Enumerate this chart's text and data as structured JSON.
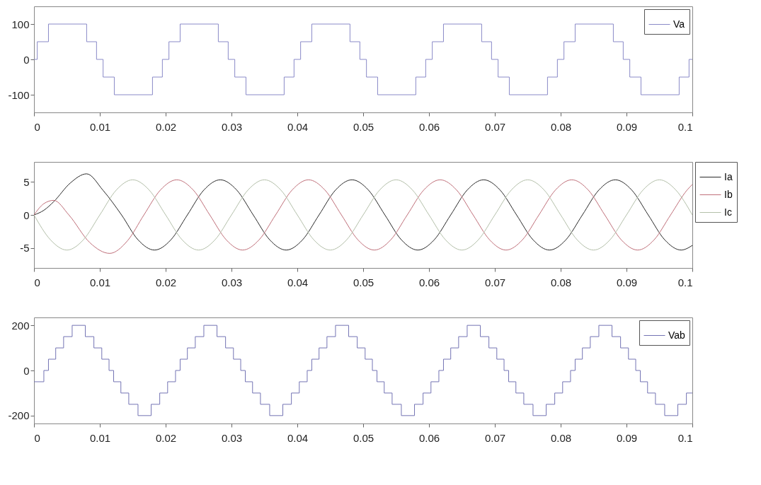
{
  "chart_data": [
    {
      "type": "step",
      "legend": "top right",
      "grid": false,
      "xlim": [
        0,
        0.1
      ],
      "xticks": [
        0,
        0.01,
        0.02,
        0.03,
        0.04,
        0.05,
        0.06,
        0.07,
        0.08,
        0.09,
        0.1
      ],
      "ylim": [
        -150,
        150
      ],
      "yticks": [
        -100,
        0,
        100
      ],
      "series": [
        {
          "name": "Va",
          "color": "#8a8ac8",
          "x": [
            0,
            0.0005,
            0.0022,
            0.008,
            0.0095,
            0.0105,
            0.0122,
            0.018,
            0.0195,
            0.0205,
            0.0222,
            0.028,
            0.0295,
            0.0305,
            0.0322,
            0.038,
            0.0395,
            0.0405,
            0.0422,
            0.048,
            0.0495,
            0.0505,
            0.0522,
            0.058,
            0.0595,
            0.0605,
            0.0622,
            0.068,
            0.0695,
            0.0705,
            0.0722,
            0.078,
            0.0795,
            0.0805,
            0.0822,
            0.088,
            0.0895,
            0.0905,
            0.0922,
            0.098,
            0.0995,
            0.1
          ],
          "values": [
            0,
            50,
            100,
            50,
            0,
            -50,
            -100,
            -50,
            0,
            50,
            100,
            50,
            0,
            -50,
            -100,
            -50,
            0,
            50,
            100,
            50,
            0,
            -50,
            -100,
            -50,
            0,
            50,
            100,
            50,
            0,
            -50,
            -100,
            -50,
            0,
            50,
            100,
            50,
            0,
            -50,
            -100,
            -50,
            0,
            0
          ]
        }
      ]
    },
    {
      "type": "line",
      "legend": "right",
      "grid": false,
      "xlim": [
        0,
        0.1
      ],
      "xticks": [
        0,
        0.01,
        0.02,
        0.03,
        0.04,
        0.05,
        0.06,
        0.07,
        0.08,
        0.09,
        0.1
      ],
      "ylim": [
        -8,
        8
      ],
      "yticks": [
        -5,
        0,
        5
      ],
      "series": [
        {
          "name": "Ia",
          "color": "#2a2a2a",
          "x": [
            0,
            0.0015,
            0.003,
            0.0055,
            0.008,
            0.0105,
            0.0133,
            0.0158,
            0.0183,
            0.0208,
            0.0233,
            0.0258,
            0.0283,
            0.0308,
            0.0333,
            0.0358,
            0.0383,
            0.0408,
            0.0433,
            0.0458,
            0.0483,
            0.0508,
            0.0533,
            0.0558,
            0.0583,
            0.0608,
            0.0633,
            0.0658,
            0.0683,
            0.0708,
            0.0733,
            0.0758,
            0.0783,
            0.0808,
            0.0833,
            0.0858,
            0.0883,
            0.0908,
            0.0933,
            0.0958,
            0.0983,
            0.1
          ],
          "values": [
            0,
            0.7,
            2,
            4.8,
            6.2,
            3.7,
            0,
            -3.75,
            -5.3,
            -3.75,
            0,
            3.75,
            5.3,
            3.75,
            0,
            -3.75,
            -5.3,
            -3.75,
            0,
            3.75,
            5.3,
            3.75,
            0,
            -3.75,
            -5.3,
            -3.75,
            0,
            3.75,
            5.3,
            3.75,
            0,
            -3.75,
            -5.3,
            -3.75,
            0,
            3.75,
            5.3,
            3.75,
            0,
            -3.75,
            -5.3,
            -4.6
          ]
        },
        {
          "name": "Ib",
          "color": "#c0707a",
          "x": [
            0,
            0.0015,
            0.003,
            0.0053,
            0.0085,
            0.0115,
            0.0142,
            0.0167,
            0.0192,
            0.0217,
            0.0242,
            0.0267,
            0.0292,
            0.0317,
            0.0342,
            0.0367,
            0.0392,
            0.0417,
            0.0442,
            0.0467,
            0.0492,
            0.0517,
            0.0542,
            0.0567,
            0.0592,
            0.0617,
            0.0642,
            0.0667,
            0.0692,
            0.0717,
            0.0742,
            0.0767,
            0.0792,
            0.0817,
            0.0842,
            0.0867,
            0.0892,
            0.0917,
            0.0942,
            0.0967,
            0.0992,
            0.1
          ],
          "values": [
            0,
            1.7,
            2.2,
            0,
            -4.2,
            -5.8,
            -3.9,
            0,
            3.75,
            5.3,
            3.75,
            0,
            -3.75,
            -5.3,
            -3.75,
            0,
            3.75,
            5.3,
            3.75,
            0,
            -3.75,
            -5.3,
            -3.75,
            0,
            3.75,
            5.3,
            3.75,
            0,
            -3.75,
            -5.3,
            -3.75,
            0,
            3.75,
            5.3,
            3.75,
            0,
            -3.75,
            -5.3,
            -3.75,
            0,
            3.75,
            4.6
          ]
        },
        {
          "name": "Ic",
          "color": "#b4c0aa",
          "x": [
            0,
            0.0025,
            0.005,
            0.0075,
            0.01,
            0.0125,
            0.015,
            0.0175,
            0.02,
            0.0225,
            0.025,
            0.0275,
            0.03,
            0.0325,
            0.035,
            0.0375,
            0.04,
            0.0425,
            0.045,
            0.0475,
            0.05,
            0.0525,
            0.055,
            0.0575,
            0.06,
            0.0625,
            0.065,
            0.0675,
            0.07,
            0.0725,
            0.075,
            0.0775,
            0.08,
            0.0825,
            0.085,
            0.0875,
            0.09,
            0.0925,
            0.095,
            0.0975,
            0.1
          ],
          "values": [
            0,
            -3.75,
            -5.3,
            -3.75,
            0,
            3.75,
            5.3,
            3.75,
            0,
            -3.75,
            -5.3,
            -3.75,
            0,
            3.75,
            5.3,
            3.75,
            0,
            -3.75,
            -5.3,
            -3.75,
            0,
            3.75,
            5.3,
            3.75,
            0,
            -3.75,
            -5.3,
            -3.75,
            0,
            3.75,
            5.3,
            3.75,
            0,
            -3.75,
            -5.3,
            -3.75,
            0,
            3.75,
            5.3,
            3.75,
            0
          ]
        }
      ]
    },
    {
      "type": "step",
      "legend": "top right",
      "grid": false,
      "xlim": [
        0,
        0.1
      ],
      "xticks": [
        0,
        0.01,
        0.02,
        0.03,
        0.04,
        0.05,
        0.06,
        0.07,
        0.08,
        0.09,
        0.1
      ],
      "ylim": [
        -235,
        235
      ],
      "yticks": [
        -200,
        0,
        200
      ],
      "series": [
        {
          "name": "Vab",
          "color": "#7474b4",
          "x": [
            0,
            0.0015,
            0.0022,
            0.0033,
            0.0045,
            0.0058,
            0.0078,
            0.0091,
            0.0103,
            0.0114,
            0.0121,
            0.0132,
            0.0144,
            0.0158,
            0.0178,
            0.0191,
            0.0203,
            0.0215,
            0.0222,
            0.0233,
            0.0245,
            0.0258,
            0.0278,
            0.0291,
            0.0303,
            0.0314,
            0.0321,
            0.0332,
            0.0344,
            0.0358,
            0.0378,
            0.0391,
            0.0403,
            0.0415,
            0.0422,
            0.0433,
            0.0445,
            0.0458,
            0.0478,
            0.0491,
            0.0503,
            0.0514,
            0.0521,
            0.0532,
            0.0544,
            0.0558,
            0.0578,
            0.0591,
            0.0603,
            0.0615,
            0.0622,
            0.0633,
            0.0645,
            0.0658,
            0.0678,
            0.0691,
            0.0703,
            0.0714,
            0.0721,
            0.0732,
            0.0744,
            0.0758,
            0.0778,
            0.0791,
            0.0803,
            0.0815,
            0.0822,
            0.0833,
            0.0845,
            0.0858,
            0.0878,
            0.0891,
            0.0903,
            0.0914,
            0.0921,
            0.0932,
            0.0944,
            0.0958,
            0.0978,
            0.0991,
            0.1
          ],
          "values": [
            -50,
            0,
            50,
            100,
            150,
            200,
            150,
            100,
            50,
            0,
            -50,
            -100,
            -150,
            -200,
            -150,
            -100,
            -50,
            0,
            50,
            100,
            150,
            200,
            150,
            100,
            50,
            0,
            -50,
            -100,
            -150,
            -200,
            -150,
            -100,
            -50,
            0,
            50,
            100,
            150,
            200,
            150,
            100,
            50,
            0,
            -50,
            -100,
            -150,
            -200,
            -150,
            -100,
            -50,
            0,
            50,
            100,
            150,
            200,
            150,
            100,
            50,
            0,
            -50,
            -100,
            -150,
            -200,
            -150,
            -100,
            -50,
            0,
            50,
            100,
            150,
            200,
            150,
            100,
            50,
            0,
            -50,
            -100,
            -150,
            -200,
            -150,
            -100,
            -100
          ]
        }
      ]
    }
  ]
}
